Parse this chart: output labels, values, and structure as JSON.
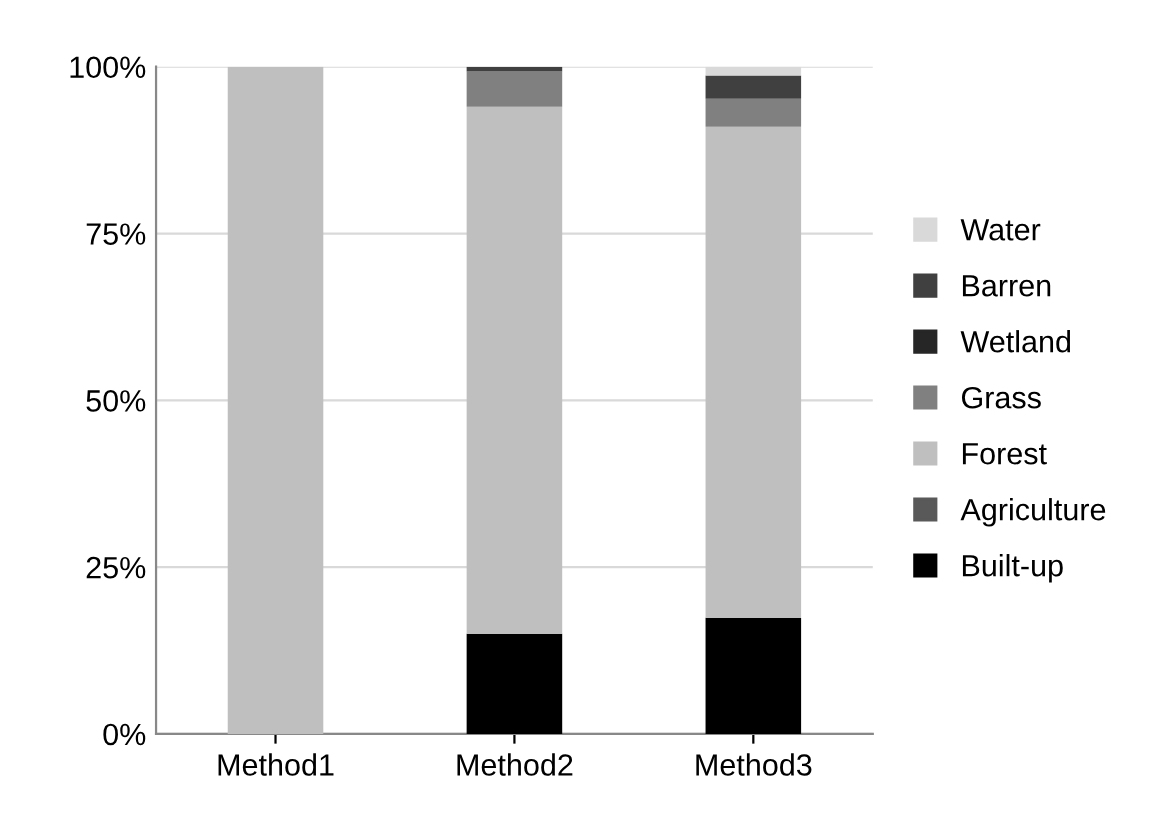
{
  "chart_data": {
    "type": "bar",
    "stacked": true,
    "categories": [
      "Method1",
      "Method2",
      "Method3"
    ],
    "series": [
      {
        "name": "Built-up",
        "color": "#000000",
        "values": [
          0,
          15,
          17.4
        ]
      },
      {
        "name": "Agriculture",
        "color": "#595959",
        "values": [
          0,
          0,
          0
        ]
      },
      {
        "name": "Forest",
        "color": "#bfbfbf",
        "values": [
          100,
          79,
          73.6
        ]
      },
      {
        "name": "Grass",
        "color": "#808080",
        "values": [
          0,
          5.3,
          4.2
        ]
      },
      {
        "name": "Wetland",
        "color": "#262626",
        "values": [
          0,
          0,
          0
        ]
      },
      {
        "name": "Barren",
        "color": "#404040",
        "values": [
          0,
          0.7,
          3.5
        ]
      },
      {
        "name": "Water",
        "color": "#d9d9d9",
        "values": [
          0,
          0,
          1.3
        ]
      }
    ],
    "ylim": [
      0,
      100
    ],
    "yticks": [
      {
        "value": 0,
        "label": "0%"
      },
      {
        "value": 25,
        "label": "25%"
      },
      {
        "value": 50,
        "label": "50%"
      },
      {
        "value": 75,
        "label": "75%"
      },
      {
        "value": 100,
        "label": "100%"
      }
    ],
    "grid": "y",
    "legend": "right"
  }
}
